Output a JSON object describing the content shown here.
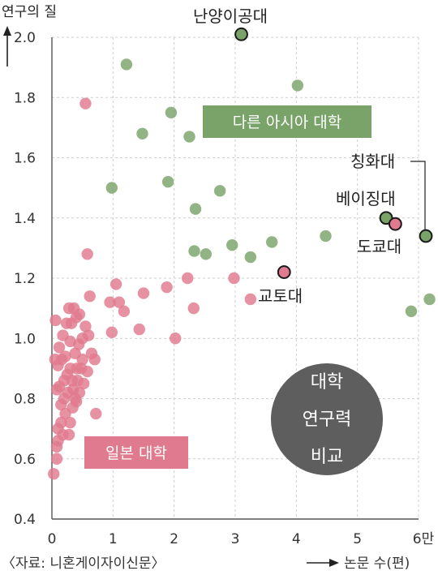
{
  "chart_data": {
    "type": "scatter",
    "ylabel": "연구의 질",
    "xlabel": "논문 수(편)",
    "source": "〈자료: 니혼게이자이신문〉",
    "xlim": [
      0,
      6
    ],
    "ylim": [
      0.4,
      2.0
    ],
    "x_ticks": [
      "0",
      "1",
      "2",
      "3",
      "4",
      "5",
      "6만"
    ],
    "y_ticks": [
      "0.4",
      "0.6",
      "0.8",
      "1.0",
      "1.2",
      "1.4",
      "1.6",
      "1.8",
      "2.0"
    ],
    "colors": {
      "asia": "#7aa36a",
      "japan": "#e07a8e",
      "badge": "#5e5e5e"
    },
    "series": [
      {
        "name": "다른 아시아 대학",
        "points": [
          [
            1.22,
            1.91
          ],
          [
            1.48,
            1.68
          ],
          [
            1.95,
            1.75
          ],
          [
            2.25,
            1.67
          ],
          [
            0.98,
            1.5
          ],
          [
            1.9,
            1.52
          ],
          [
            2.35,
            1.43
          ],
          [
            2.75,
            1.49
          ],
          [
            2.33,
            1.29
          ],
          [
            2.52,
            1.28
          ],
          [
            2.95,
            1.31
          ],
          [
            3.25,
            1.27
          ],
          [
            3.6,
            1.32
          ],
          [
            4.02,
            1.84
          ],
          [
            4.48,
            1.34
          ],
          [
            5.88,
            1.09
          ],
          [
            6.18,
            1.13
          ]
        ]
      },
      {
        "name": "일본 대학",
        "points": [
          [
            0.55,
            1.78
          ],
          [
            0.58,
            1.28
          ],
          [
            1.05,
            1.18
          ],
          [
            0.95,
            1.12
          ],
          [
            1.1,
            1.12
          ],
          [
            1.18,
            1.09
          ],
          [
            1.5,
            1.15
          ],
          [
            1.88,
            1.17
          ],
          [
            2.22,
            1.2
          ],
          [
            2.32,
            1.1
          ],
          [
            0.98,
            1.02
          ],
          [
            1.43,
            1.03
          ],
          [
            2.02,
            1.0
          ],
          [
            2.98,
            1.2
          ],
          [
            3.25,
            1.13
          ],
          [
            0.72,
            0.75
          ],
          [
            0.03,
            0.55
          ],
          [
            0.08,
            0.6
          ],
          [
            0.1,
            0.66
          ],
          [
            0.05,
            0.93
          ],
          [
            0.12,
            0.84
          ],
          [
            0.2,
            0.8
          ],
          [
            0.18,
            1.01
          ],
          [
            0.28,
            1.1
          ],
          [
            0.32,
            1.05
          ],
          [
            0.4,
            1.07
          ],
          [
            0.45,
            1.08
          ],
          [
            0.55,
            1.04
          ],
          [
            0.5,
            1.0
          ],
          [
            0.6,
            1.01
          ],
          [
            0.62,
            1.14
          ],
          [
            0.65,
            0.95
          ],
          [
            0.7,
            0.93
          ],
          [
            0.38,
            0.95
          ],
          [
            0.3,
            0.9
          ],
          [
            0.25,
            0.88
          ],
          [
            0.48,
            0.9
          ],
          [
            0.42,
            0.86
          ],
          [
            0.35,
            0.83
          ],
          [
            0.4,
            0.79
          ],
          [
            0.22,
            0.75
          ],
          [
            0.15,
            0.72
          ],
          [
            0.1,
            0.7
          ],
          [
            0.3,
            0.72
          ],
          [
            0.28,
            0.68
          ],
          [
            0.45,
            0.82
          ],
          [
            0.52,
            0.85
          ],
          [
            0.58,
            0.89
          ],
          [
            0.2,
            0.86
          ],
          [
            0.15,
            0.78
          ],
          [
            0.08,
            0.83
          ],
          [
            0.34,
            0.77
          ],
          [
            0.26,
            0.82
          ],
          [
            0.38,
            0.8
          ],
          [
            0.12,
            0.97
          ],
          [
            0.22,
            0.94
          ],
          [
            0.06,
            1.06
          ],
          [
            0.1,
            0.91
          ],
          [
            0.3,
            0.99
          ],
          [
            0.44,
            0.98
          ],
          [
            0.18,
            0.68
          ],
          [
            0.24,
            1.05
          ],
          [
            0.36,
            1.1
          ],
          [
            0.08,
            0.64
          ],
          [
            0.5,
            0.93
          ],
          [
            0.16,
            0.93
          ],
          [
            0.33,
            0.86
          ],
          [
            0.41,
            0.9
          ]
        ]
      }
    ],
    "highlighted": [
      {
        "label": "난양이공대",
        "x": 3.1,
        "y": 2.01,
        "group": "asia"
      },
      {
        "label": "칭화대",
        "x": 6.12,
        "y": 1.34,
        "group": "asia"
      },
      {
        "label": "베이징대",
        "x": 5.47,
        "y": 1.4,
        "group": "asia"
      },
      {
        "label": "도쿄대",
        "x": 5.62,
        "y": 1.38,
        "group": "japan"
      },
      {
        "label": "교토대",
        "x": 3.8,
        "y": 1.22,
        "group": "japan"
      }
    ],
    "legend_boxes": {
      "asia": "다른 아시아 대학",
      "japan": "일본 대학"
    },
    "badge": [
      "대학",
      "연구력",
      "비교"
    ]
  }
}
